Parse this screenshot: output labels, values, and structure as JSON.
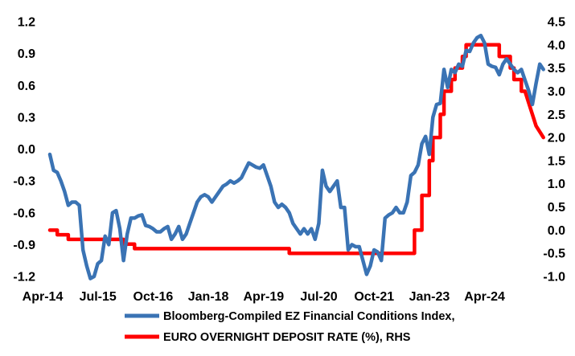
{
  "chart_data": {
    "type": "line",
    "title": "",
    "x_tick_labels": [
      "Apr-14",
      "Jul-15",
      "Oct-16",
      "Jan-18",
      "Apr-19",
      "Jul-20",
      "Oct-21",
      "Jan-23",
      "Apr-24"
    ],
    "x_range": [
      "2014-04",
      "2025-03"
    ],
    "y_left": {
      "range": [
        -1.2,
        1.2
      ],
      "tick_labels": [
        "1.2",
        "0.9",
        "0.6",
        "0.3",
        "0.0",
        "-0.3",
        "-0.6",
        "-0.9",
        "-1.2"
      ]
    },
    "y_right": {
      "range": [
        -1.0,
        4.5
      ],
      "tick_labels": [
        "4.5",
        "4.0",
        "3.5",
        "3.0",
        "2.5",
        "2.0",
        "1.5",
        "1.0",
        "0.5",
        "0.0",
        "-0.5",
        "-1.0"
      ]
    },
    "grid": false,
    "legend_position": "bottom",
    "series": [
      {
        "name": "Bloomberg-Compiled EZ Financial Conditions Index,",
        "axis": "left",
        "color": "#3a73b4",
        "points": [
          [
            "2014-04",
            -0.05
          ],
          [
            "2014-05",
            -0.2
          ],
          [
            "2014-06",
            -0.22
          ],
          [
            "2014-07",
            -0.3
          ],
          [
            "2014-08",
            -0.4
          ],
          [
            "2014-09",
            -0.53
          ],
          [
            "2014-10",
            -0.5
          ],
          [
            "2014-11",
            -0.5
          ],
          [
            "2014-12",
            -0.53
          ],
          [
            "2015-01",
            -0.95
          ],
          [
            "2015-02",
            -1.1
          ],
          [
            "2015-03",
            -1.22
          ],
          [
            "2015-04",
            -1.2
          ],
          [
            "2015-05",
            -1.08
          ],
          [
            "2015-06",
            -1.05
          ],
          [
            "2015-07",
            -0.82
          ],
          [
            "2015-08",
            -0.9
          ],
          [
            "2015-09",
            -0.6
          ],
          [
            "2015-10",
            -0.58
          ],
          [
            "2015-11",
            -0.75
          ],
          [
            "2015-12",
            -1.05
          ],
          [
            "2016-01",
            -0.8
          ],
          [
            "2016-02",
            -0.65
          ],
          [
            "2016-03",
            -0.65
          ],
          [
            "2016-04",
            -0.63
          ],
          [
            "2016-05",
            -0.62
          ],
          [
            "2016-06",
            -0.72
          ],
          [
            "2016-07",
            -0.73
          ],
          [
            "2016-08",
            -0.75
          ],
          [
            "2016-09",
            -0.78
          ],
          [
            "2016-10",
            -0.78
          ],
          [
            "2016-11",
            -0.75
          ],
          [
            "2016-12",
            -0.73
          ],
          [
            "2017-01",
            -0.85
          ],
          [
            "2017-02",
            -0.8
          ],
          [
            "2017-03",
            -0.73
          ],
          [
            "2017-04",
            -0.85
          ],
          [
            "2017-05",
            -0.8
          ],
          [
            "2017-06",
            -0.7
          ],
          [
            "2017-07",
            -0.6
          ],
          [
            "2017-08",
            -0.5
          ],
          [
            "2017-09",
            -0.45
          ],
          [
            "2017-10",
            -0.43
          ],
          [
            "2017-11",
            -0.45
          ],
          [
            "2017-12",
            -0.5
          ],
          [
            "2018-01",
            -0.45
          ],
          [
            "2018-02",
            -0.4
          ],
          [
            "2018-03",
            -0.35
          ],
          [
            "2018-04",
            -0.33
          ],
          [
            "2018-05",
            -0.3
          ],
          [
            "2018-06",
            -0.32
          ],
          [
            "2018-07",
            -0.3
          ],
          [
            "2018-08",
            -0.27
          ],
          [
            "2018-09",
            -0.2
          ],
          [
            "2018-10",
            -0.13
          ],
          [
            "2018-11",
            -0.15
          ],
          [
            "2018-12",
            -0.17
          ],
          [
            "2019-01",
            -0.18
          ],
          [
            "2019-02",
            -0.15
          ],
          [
            "2019-03",
            -0.25
          ],
          [
            "2019-04",
            -0.35
          ],
          [
            "2019-05",
            -0.5
          ],
          [
            "2019-06",
            -0.55
          ],
          [
            "2019-07",
            -0.52
          ],
          [
            "2019-08",
            -0.55
          ],
          [
            "2019-09",
            -0.6
          ],
          [
            "2019-10",
            -0.7
          ],
          [
            "2019-11",
            -0.75
          ],
          [
            "2019-12",
            -0.8
          ],
          [
            "2020-01",
            -0.75
          ],
          [
            "2020-02",
            -0.8
          ],
          [
            "2020-03",
            -0.75
          ],
          [
            "2020-04",
            -0.85
          ],
          [
            "2020-05",
            -0.7
          ],
          [
            "2020-06",
            -0.2
          ],
          [
            "2020-07",
            -0.35
          ],
          [
            "2020-08",
            -0.4
          ],
          [
            "2020-09",
            -0.35
          ],
          [
            "2020-10",
            -0.3
          ],
          [
            "2020-11",
            -0.55
          ],
          [
            "2020-12",
            -0.55
          ],
          [
            "2021-01",
            -0.95
          ],
          [
            "2021-02",
            -0.9
          ],
          [
            "2021-03",
            -0.92
          ],
          [
            "2021-04",
            -0.92
          ],
          [
            "2021-05",
            -1.05
          ],
          [
            "2021-06",
            -1.18
          ],
          [
            "2021-07",
            -1.1
          ],
          [
            "2021-08",
            -0.95
          ],
          [
            "2021-09",
            -0.97
          ],
          [
            "2021-10",
            -1.05
          ],
          [
            "2021-11",
            -0.65
          ],
          [
            "2021-12",
            -0.62
          ],
          [
            "2022-01",
            -0.6
          ],
          [
            "2022-02",
            -0.55
          ],
          [
            "2022-03",
            -0.6
          ],
          [
            "2022-04",
            -0.6
          ],
          [
            "2022-05",
            -0.5
          ],
          [
            "2022-06",
            -0.25
          ],
          [
            "2022-07",
            -0.22
          ],
          [
            "2022-08",
            -0.15
          ],
          [
            "2022-09",
            0.05
          ],
          [
            "2022-10",
            0.12
          ],
          [
            "2022-11",
            -0.05
          ],
          [
            "2022-12",
            0.3
          ],
          [
            "2023-01",
            0.42
          ],
          [
            "2023-02",
            0.43
          ],
          [
            "2023-03",
            0.75
          ],
          [
            "2023-04",
            0.58
          ],
          [
            "2023-05",
            0.75
          ],
          [
            "2023-06",
            0.72
          ],
          [
            "2023-07",
            0.8
          ],
          [
            "2023-08",
            0.78
          ],
          [
            "2023-09",
            0.93
          ],
          [
            "2023-10",
            0.92
          ],
          [
            "2023-11",
            1.0
          ],
          [
            "2023-12",
            1.05
          ],
          [
            "2024-01",
            1.07
          ],
          [
            "2024-02",
            1.0
          ],
          [
            "2024-03",
            0.8
          ],
          [
            "2024-04",
            0.78
          ],
          [
            "2024-05",
            0.77
          ],
          [
            "2024-06",
            0.7
          ],
          [
            "2024-07",
            0.8
          ],
          [
            "2024-08",
            0.85
          ],
          [
            "2024-09",
            0.8
          ],
          [
            "2024-10",
            0.75
          ],
          [
            "2024-11",
            0.72
          ],
          [
            "2024-12",
            0.75
          ],
          [
            "2025-01",
            0.65
          ],
          [
            "2025-02",
            0.55
          ],
          [
            "2025-03",
            0.42
          ],
          [
            "2025-04",
            0.62
          ],
          [
            "2025-05",
            0.8
          ],
          [
            "2025-06",
            0.75
          ]
        ]
      },
      {
        "name": "EURO OVERNIGHT DEPOSIT RATE (%), RHS",
        "axis": "right",
        "color": "#ff0000",
        "points": [
          [
            "2014-04",
            0.0
          ],
          [
            "2014-06",
            0.0
          ],
          [
            "2014-06",
            -0.1
          ],
          [
            "2014-09",
            -0.1
          ],
          [
            "2014-09",
            -0.2
          ],
          [
            "2015-12",
            -0.2
          ],
          [
            "2015-12",
            -0.3
          ],
          [
            "2016-03",
            -0.3
          ],
          [
            "2016-03",
            -0.4
          ],
          [
            "2019-09",
            -0.4
          ],
          [
            "2019-09",
            -0.5
          ],
          [
            "2022-07",
            -0.5
          ],
          [
            "2022-07",
            0.0
          ],
          [
            "2022-09",
            0.0
          ],
          [
            "2022-09",
            0.75
          ],
          [
            "2022-11",
            0.75
          ],
          [
            "2022-11",
            1.5
          ],
          [
            "2022-12",
            1.5
          ],
          [
            "2022-12",
            2.0
          ],
          [
            "2023-02",
            2.0
          ],
          [
            "2023-02",
            2.5
          ],
          [
            "2023-03",
            2.5
          ],
          [
            "2023-03",
            3.0
          ],
          [
            "2023-05",
            3.0
          ],
          [
            "2023-05",
            3.25
          ],
          [
            "2023-06",
            3.25
          ],
          [
            "2023-06",
            3.5
          ],
          [
            "2023-08",
            3.5
          ],
          [
            "2023-08",
            3.75
          ],
          [
            "2023-09",
            3.75
          ],
          [
            "2023-09",
            4.0
          ],
          [
            "2024-06",
            4.0
          ],
          [
            "2024-06",
            3.75
          ],
          [
            "2024-09",
            3.75
          ],
          [
            "2024-09",
            3.5
          ],
          [
            "2024-10",
            3.5
          ],
          [
            "2024-10",
            3.25
          ],
          [
            "2024-12",
            3.25
          ],
          [
            "2024-12",
            3.0
          ],
          [
            "2025-01",
            3.0
          ],
          [
            "2025-02",
            2.75
          ],
          [
            "2025-03",
            2.5
          ],
          [
            "2025-04",
            2.25
          ],
          [
            "2025-06",
            2.0
          ]
        ]
      }
    ]
  }
}
